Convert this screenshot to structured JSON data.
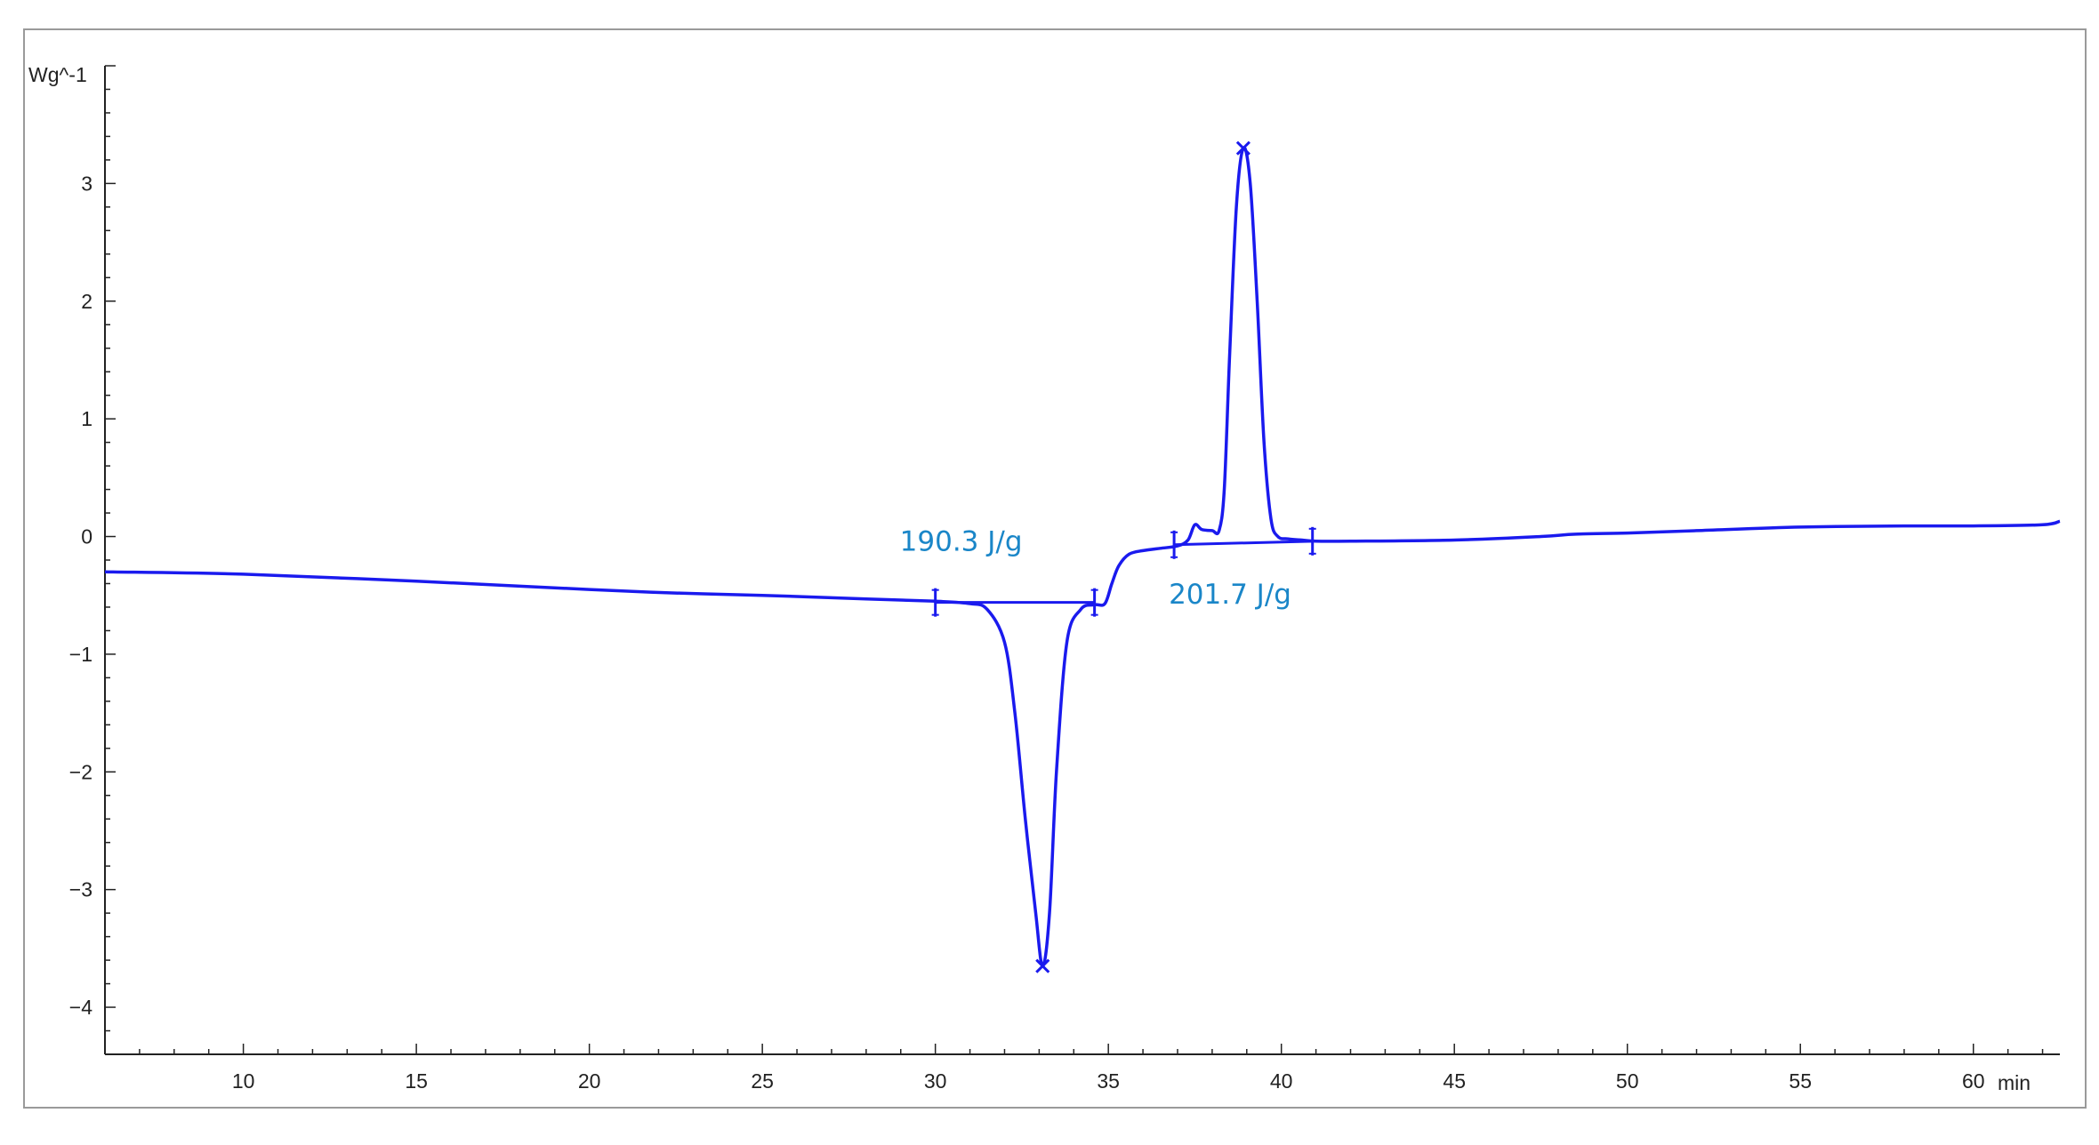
{
  "chart_data": {
    "type": "line",
    "title": "",
    "xlabel": "",
    "ylabel": "",
    "x_unit": "min",
    "y_unit": "Wg^-1",
    "xlim": [
      6,
      62.5
    ],
    "ylim": [
      -4.4,
      4.0
    ],
    "x_ticks": [
      10,
      15,
      20,
      25,
      30,
      35,
      40,
      45,
      50,
      55,
      60
    ],
    "y_ticks": [
      3,
      2,
      1,
      0,
      -1,
      -2,
      -3,
      -4
    ],
    "grid": false,
    "line_color": "#1a1aee",
    "annotation_color": "#1a86c8",
    "series": [
      {
        "name": "",
        "x": [
          6.0,
          10.0,
          15.0,
          20.0,
          22.5,
          25.0,
          28.0,
          30.0,
          31.0,
          31.5,
          32.0,
          32.3,
          32.6,
          32.9,
          33.1,
          33.3,
          33.5,
          33.8,
          34.2,
          34.6,
          34.9,
          35.1,
          35.3,
          35.6,
          36.0,
          36.5,
          37.0,
          37.3,
          37.5,
          37.7,
          38.0,
          38.2,
          38.35,
          38.5,
          38.7,
          38.9,
          39.1,
          39.3,
          39.5,
          39.7,
          39.9,
          40.2,
          40.6,
          41.0,
          42.0,
          45.0,
          47.5,
          48.5,
          50.0,
          52.0,
          55.0,
          58.0,
          60.0,
          62.0,
          62.5
        ],
        "y": [
          -0.3,
          -0.32,
          -0.38,
          -0.45,
          -0.48,
          -0.5,
          -0.53,
          -0.55,
          -0.57,
          -0.62,
          -0.9,
          -1.5,
          -2.4,
          -3.2,
          -3.65,
          -3.2,
          -2.0,
          -0.9,
          -0.62,
          -0.58,
          -0.57,
          -0.4,
          -0.25,
          -0.15,
          -0.12,
          -0.1,
          -0.08,
          -0.03,
          0.1,
          0.06,
          0.05,
          0.05,
          0.4,
          1.5,
          2.8,
          3.3,
          3.0,
          2.0,
          0.8,
          0.15,
          0.0,
          -0.02,
          -0.03,
          -0.04,
          -0.04,
          -0.03,
          0.0,
          0.02,
          0.03,
          0.05,
          0.08,
          0.09,
          0.09,
          0.1,
          0.13
        ]
      }
    ],
    "integrations": [
      {
        "label": "190.3 J/g",
        "x_start": 30.0,
        "x_end": 34.6,
        "y_start": -0.56,
        "y_end": -0.56
      },
      {
        "label": "201.7 J/g",
        "x_start": 36.9,
        "x_end": 40.9,
        "y_start": -0.07,
        "y_end": -0.04
      }
    ],
    "peak_markers": [
      {
        "x": 33.1,
        "y": -3.65
      },
      {
        "x": 38.9,
        "y": 3.3
      }
    ]
  }
}
